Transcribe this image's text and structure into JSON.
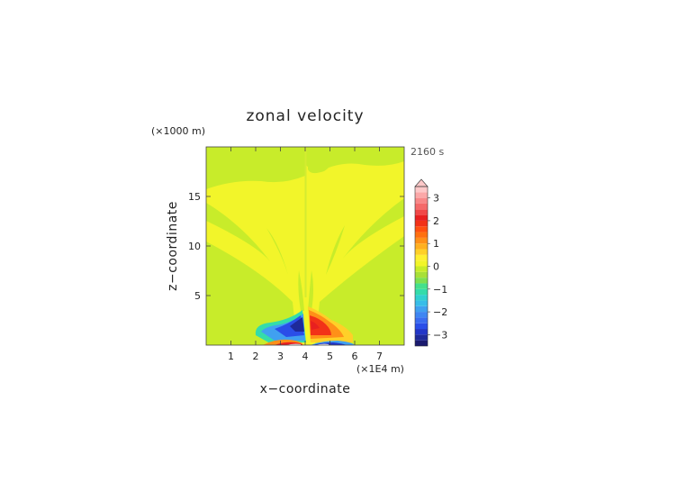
{
  "chart_data": {
    "type": "heatmap",
    "title": "zonal velocity",
    "xlabel": "x−coordinate",
    "ylabel": "z−coordinate",
    "x_unit": "(×1E4 m)",
    "y_unit": "(×1000 m)",
    "time_label": "2160 s",
    "xlim": [
      0,
      8
    ],
    "ylim": [
      0,
      20
    ],
    "x_ticks": [
      1,
      2,
      3,
      4,
      5,
      6,
      7
    ],
    "y_ticks": [
      5,
      10,
      15
    ],
    "x_tick_labels": [
      "1",
      "2",
      "3",
      "4",
      "5",
      "6",
      "7"
    ],
    "y_tick_labels": [
      "5",
      "10",
      "15"
    ],
    "colorbar": {
      "levels": [
        -3.5,
        -3.25,
        -3,
        -2.75,
        -2.5,
        -2.25,
        -2,
        -1.75,
        -1.5,
        -1.25,
        -1,
        -0.75,
        -0.5,
        -0.25,
        0,
        0.25,
        0.5,
        0.75,
        1,
        1.25,
        1.5,
        1.75,
        2,
        2.25,
        2.5,
        2.75,
        3,
        3.25,
        3.5
      ],
      "colors": [
        "#1a1a6e",
        "#1e2a9a",
        "#2236c8",
        "#2a4ee8",
        "#3a6cf0",
        "#3f86f2",
        "#40a0f0",
        "#38bde8",
        "#30d0d0",
        "#34dcaa",
        "#44e08c",
        "#7ee050",
        "#a8e038",
        "#c8ec2a",
        "#f2f52a",
        "#fff030",
        "#ffd028",
        "#ffb020",
        "#ff9018",
        "#ff7010",
        "#ff5010",
        "#f23218",
        "#e82020",
        "#f04848",
        "#f46a6a",
        "#f88888",
        "#fba8a8",
        "#fdc8c8"
      ],
      "tick_values": [
        3,
        2,
        1,
        0,
        -1,
        -2,
        -3
      ],
      "tick_labels": [
        "3",
        "2",
        "1",
        "0",
        "−1",
        "−2",
        "−3"
      ],
      "extend": "max"
    },
    "background_value_range": [
      0,
      0.25
    ],
    "features": [
      {
        "desc": "negative jet left of ridge",
        "x_range": [
          2.0,
          4.0
        ],
        "z_range": [
          0,
          3.5
        ],
        "min_value": -2.5
      },
      {
        "desc": "positive jet right of ridge",
        "x_range": [
          4.0,
          5.5
        ],
        "z_range": [
          0,
          3.5
        ],
        "max_value": 2.5
      },
      {
        "desc": "positive surface flow left",
        "x_range": [
          2.5,
          3.9
        ],
        "z_range": [
          0,
          0.5
        ],
        "max_value": 3
      },
      {
        "desc": "negative surface flow right",
        "x_range": [
          4.1,
          5.5
        ],
        "z_range": [
          0,
          0.5
        ],
        "min_value": -3
      }
    ]
  }
}
